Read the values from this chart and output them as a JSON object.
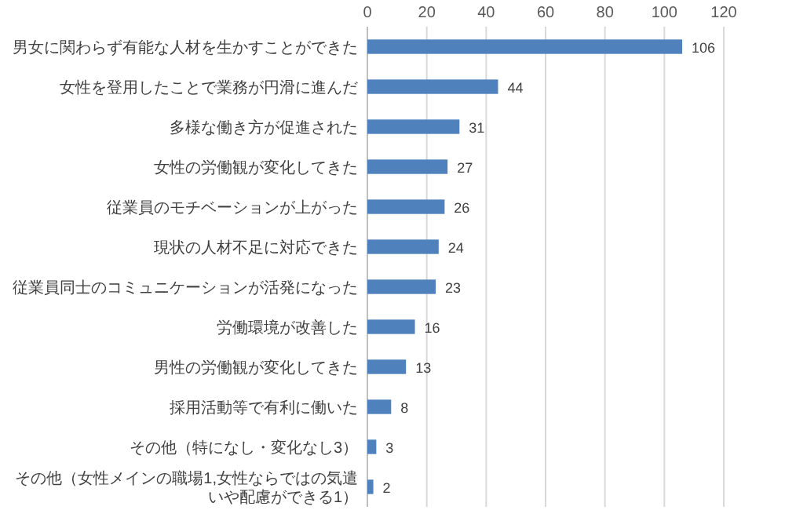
{
  "chart_data": {
    "type": "bar",
    "orientation": "horizontal",
    "categories": [
      "男女に関わらず有能な人材を生かすことができた",
      "女性を登用したことで業務が円滑に進んだ",
      "多様な働き方が促進された",
      "女性の労働観が変化してきた",
      "従業員のモチベーションが上がった",
      "現状の人材不足に対応できた",
      "従業員同士のコミュニケーションが活発になった",
      "労働環境が改善した",
      "男性の労働観が変化してきた",
      "採用活動等で有利に働いた",
      "その他（特になし・変化なし3）",
      "その他（女性メインの職場1,女性ならではの気遣いや配慮ができる1）"
    ],
    "values": [
      106,
      44,
      31,
      27,
      26,
      24,
      23,
      16,
      13,
      8,
      3,
      2
    ],
    "color": "#4f81bd",
    "xlim": [
      0,
      120
    ],
    "xticks": [
      0,
      20,
      40,
      60,
      80,
      100,
      120
    ],
    "grid": "x",
    "data_labels": true
  }
}
